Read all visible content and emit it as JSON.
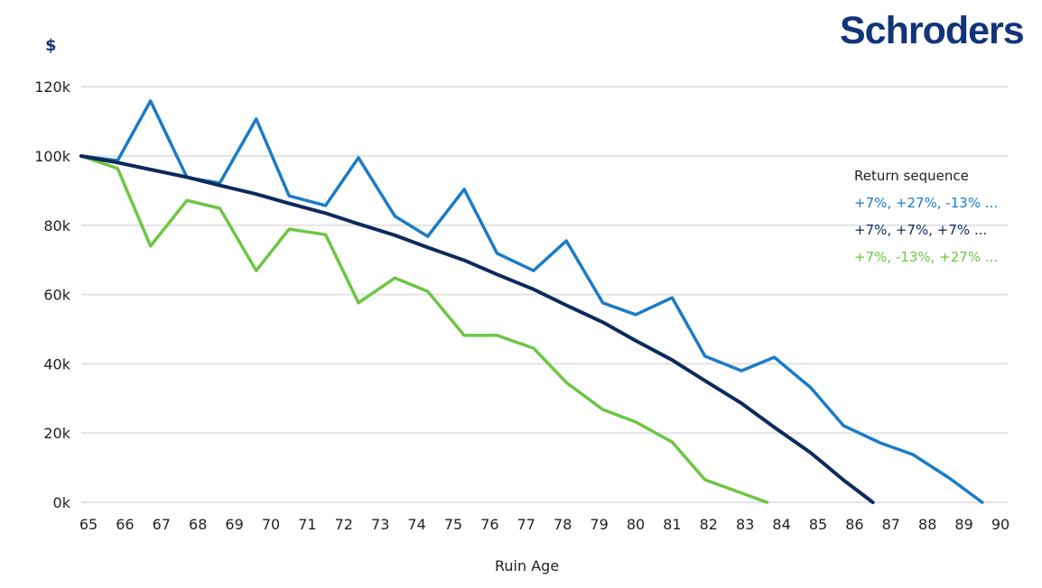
{
  "brand": {
    "logo_text": "Schroders",
    "color": "#13347a"
  },
  "chart_data": {
    "type": "line",
    "title": "",
    "ylabel": "$",
    "xlabel": "Ruin Age",
    "xlim": [
      65,
      90
    ],
    "ylim": [
      0,
      120
    ],
    "x_ticks": [
      "65",
      "66",
      "67",
      "68",
      "69",
      "70",
      "71",
      "72",
      "73",
      "74",
      "75",
      "76",
      "77",
      "78",
      "79",
      "80",
      "81",
      "82",
      "83",
      "84",
      "85",
      "86",
      "87",
      "88",
      "89",
      "90"
    ],
    "y_ticks": [
      {
        "value": 0,
        "label": "0k"
      },
      {
        "value": 20,
        "label": "20k"
      },
      {
        "value": 40,
        "label": "40k"
      },
      {
        "value": 60,
        "label": "60k"
      },
      {
        "value": 80,
        "label": "80k"
      },
      {
        "value": 100,
        "label": "100k"
      },
      {
        "value": 120,
        "label": "120k"
      }
    ],
    "grid": "horizontal",
    "legend": {
      "title": "Return sequence",
      "placement": "right"
    },
    "series": [
      {
        "name": "+7%, +27%, -13% ...",
        "color": "#1b7bc6",
        "x": [
          64.8,
          65.8,
          66.7,
          67.7,
          68.6,
          69.6,
          70.5,
          71.5,
          72.4,
          73.4,
          74.3,
          75.3,
          76.2,
          77.2,
          78.1,
          79.1,
          80.0,
          81.0,
          81.9,
          82.9,
          83.8,
          84.8,
          85.7,
          86.7,
          87.6,
          88.6,
          89.5
        ],
        "values": [
          100,
          98.7,
          115.9,
          93.8,
          92.2,
          110.7,
          88.5,
          85.7,
          99.5,
          82.6,
          76.8,
          90.4,
          71.9,
          66.9,
          75.5,
          57.6,
          54.2,
          59.1,
          42.2,
          38.0,
          41.9,
          33.1,
          22.1,
          17.2,
          13.8,
          7.0,
          0
        ]
      },
      {
        "name": "+7%, +7%, +7% ...",
        "color": "#0d2a5c",
        "x": [
          64.8,
          65.8,
          66.7,
          67.7,
          68.6,
          69.6,
          70.5,
          71.5,
          72.4,
          73.4,
          74.3,
          75.3,
          76.2,
          77.2,
          78.1,
          79.1,
          80.0,
          81.0,
          81.9,
          82.9,
          83.8,
          84.8,
          85.7,
          86.5
        ],
        "values": [
          100,
          98.1,
          96.1,
          93.9,
          91.5,
          89.0,
          86.3,
          83.5,
          80.4,
          77.1,
          73.6,
          69.9,
          65.8,
          61.5,
          56.9,
          52.0,
          46.7,
          41.1,
          35.1,
          28.6,
          21.7,
          14.3,
          6.4,
          0
        ]
      },
      {
        "name": "+7%, -13%, +27% ...",
        "color": "#6cc644",
        "x": [
          64.8,
          65.8,
          66.7,
          67.7,
          68.6,
          69.6,
          70.5,
          71.5,
          72.4,
          73.4,
          74.3,
          75.3,
          76.2,
          77.2,
          78.1,
          79.1,
          80.0,
          81.0,
          81.9,
          83.6
        ],
        "values": [
          100,
          96.4,
          74.0,
          87.2,
          84.9,
          66.9,
          78.9,
          77.3,
          57.6,
          64.8,
          60.9,
          48.2,
          48.2,
          44.5,
          34.6,
          26.8,
          23.2,
          17.4,
          6.5,
          0
        ]
      }
    ]
  }
}
